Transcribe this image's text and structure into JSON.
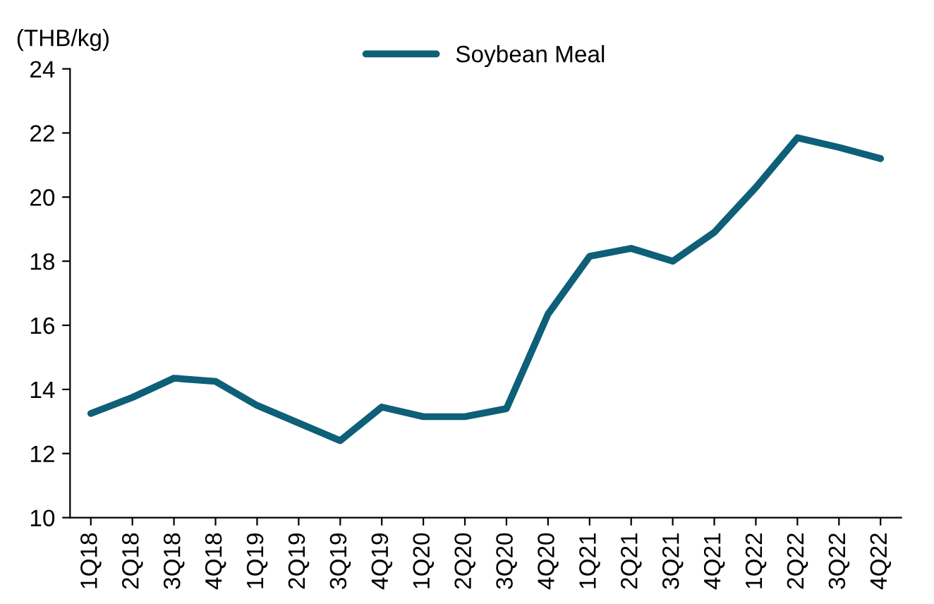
{
  "chart_data": {
    "type": "line",
    "ylabel": "(THB/kg)",
    "categories": [
      "1Q18",
      "2Q18",
      "3Q18",
      "4Q18",
      "1Q19",
      "2Q19",
      "3Q19",
      "4Q19",
      "1Q20",
      "2Q20",
      "3Q20",
      "4Q20",
      "1Q21",
      "2Q21",
      "3Q21",
      "4Q21",
      "1Q22",
      "2Q22",
      "3Q22",
      "4Q22"
    ],
    "series": [
      {
        "name": "Soybean Meal",
        "color": "#0e5f78",
        "values": [
          13.25,
          13.75,
          14.35,
          14.25,
          13.5,
          12.95,
          12.4,
          13.45,
          13.15,
          13.15,
          13.4,
          16.35,
          18.15,
          18.4,
          18.0,
          18.9,
          20.3,
          21.85,
          21.55,
          21.2
        ]
      }
    ],
    "ylim": [
      10,
      24
    ],
    "yticks": [
      10,
      12,
      14,
      16,
      18,
      20,
      22,
      24
    ],
    "grid": false,
    "legend": "top",
    "marker": "none",
    "line_style": "solid"
  }
}
